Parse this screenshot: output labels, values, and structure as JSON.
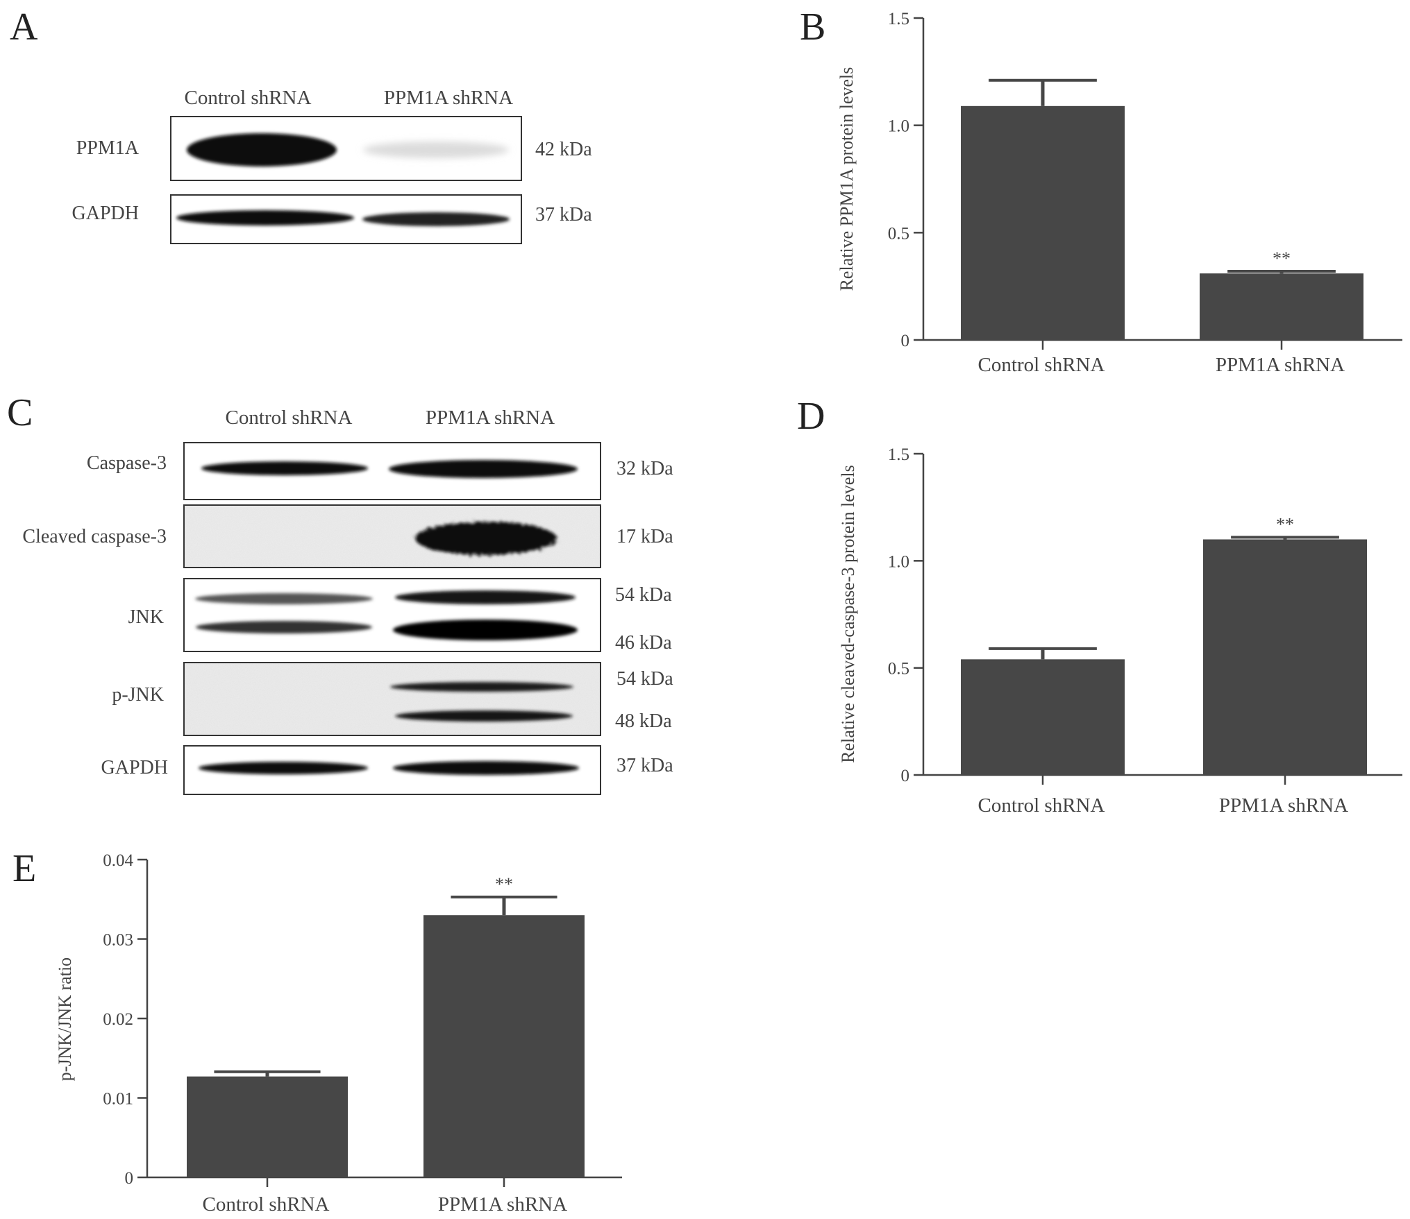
{
  "blots": [
    {
      "letter": "A",
      "lanes": [
        "Control shRNA",
        "PPM1A shRNA"
      ],
      "rows": [
        {
          "name": "PPM1A",
          "kda": [
            "42 kDa"
          ]
        },
        {
          "name": "GAPDH",
          "kda": [
            "37 kDa"
          ]
        }
      ]
    },
    {
      "letter": "C",
      "lanes": [
        "Control shRNA",
        "PPM1A shRNA"
      ],
      "rows": [
        {
          "name": "Caspase-3",
          "kda": [
            "32 kDa"
          ]
        },
        {
          "name": "Cleaved caspase-3",
          "kda": [
            "17 kDa"
          ]
        },
        {
          "name": "JNK",
          "kda": [
            "54 kDa",
            "46 kDa"
          ]
        },
        {
          "name": "p-JNK",
          "kda": [
            "54 kDa",
            "48 kDa"
          ]
        },
        {
          "name": "GAPDH",
          "kda": [
            "37 kDa"
          ]
        }
      ]
    }
  ],
  "chart_data": [
    {
      "letter": "B",
      "type": "bar",
      "categories": [
        "Control shRNA",
        "PPM1A shRNA"
      ],
      "values": [
        1.09,
        0.31
      ],
      "errors": [
        0.12,
        0.01
      ],
      "significance": [
        "",
        "**"
      ],
      "ylabel": "Relative PPM1A protein levels",
      "ylim": [
        0,
        1.5
      ],
      "yticks": [
        "0",
        "0.5",
        "1.0",
        "1.5"
      ],
      "color": "#474747"
    },
    {
      "letter": "D",
      "type": "bar",
      "categories": [
        "Control shRNA",
        "PPM1A shRNA"
      ],
      "values": [
        0.54,
        1.1
      ],
      "errors": [
        0.05,
        0.01
      ],
      "significance": [
        "",
        "**"
      ],
      "ylabel": "Relative cleaved-caspase-3 protein levels",
      "ylim": [
        0,
        1.5
      ],
      "yticks": [
        "0",
        "0.5",
        "1.0",
        "1.5"
      ],
      "color": "#474747"
    },
    {
      "letter": "E",
      "type": "bar",
      "categories": [
        "Control shRNA",
        "PPM1A shRNA"
      ],
      "values": [
        0.0127,
        0.033
      ],
      "errors": [
        0.0006,
        0.0023
      ],
      "significance": [
        "",
        "**"
      ],
      "ylabel": "p-JNK/JNK ratio",
      "ylim": [
        0,
        0.04
      ],
      "yticks": [
        "0",
        "0.01",
        "0.02",
        "0.03",
        "0.04"
      ],
      "color": "#474747"
    }
  ]
}
